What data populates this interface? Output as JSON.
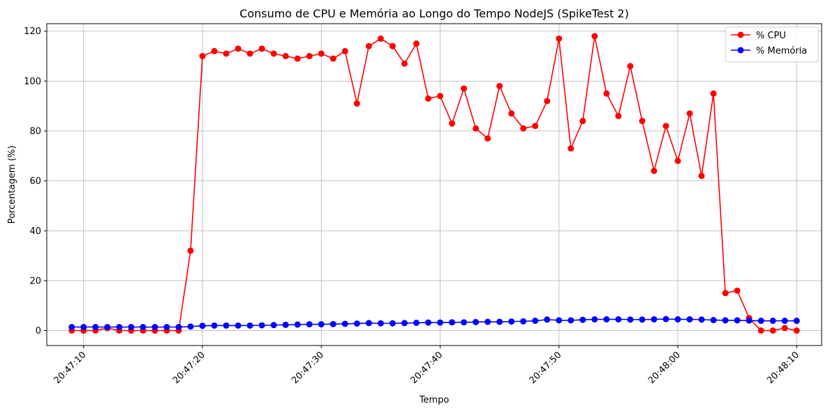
{
  "chart_data": {
    "type": "line",
    "title": "Consumo de CPU e Memória ao Longo do Tempo NodeJS (SpikeTest 2)",
    "xlabel": "Tempo",
    "ylabel": "Porcentagem (%)",
    "x_start": "20:47:09",
    "x": [
      "20:47:09",
      "20:47:10",
      "20:47:11",
      "20:47:12",
      "20:47:13",
      "20:47:14",
      "20:47:15",
      "20:47:16",
      "20:47:17",
      "20:47:18",
      "20:47:19",
      "20:47:20",
      "20:47:21",
      "20:47:22",
      "20:47:23",
      "20:47:24",
      "20:47:25",
      "20:47:26",
      "20:47:27",
      "20:47:28",
      "20:47:29",
      "20:47:30",
      "20:47:31",
      "20:47:32",
      "20:47:33",
      "20:47:34",
      "20:47:35",
      "20:47:36",
      "20:47:37",
      "20:47:38",
      "20:47:39",
      "20:47:40",
      "20:47:41",
      "20:47:42",
      "20:47:43",
      "20:47:44",
      "20:47:45",
      "20:47:46",
      "20:47:47",
      "20:47:48",
      "20:47:49",
      "20:47:50",
      "20:47:51",
      "20:47:52",
      "20:47:53",
      "20:47:54",
      "20:47:55",
      "20:47:56",
      "20:47:57",
      "20:47:58",
      "20:47:59",
      "20:48:00",
      "20:48:01",
      "20:48:02",
      "20:48:03",
      "20:48:04",
      "20:48:05",
      "20:48:06",
      "20:48:07",
      "20:48:08",
      "20:48:09",
      "20:48:10"
    ],
    "x_ticks": [
      "20:47:10",
      "20:47:20",
      "20:47:30",
      "20:47:40",
      "20:47:50",
      "20:48:00",
      "20:48:10"
    ],
    "x_tick_seconds": [
      1,
      11,
      21,
      31,
      41,
      51,
      61
    ],
    "xlim_seconds": [
      -2.1,
      63.1
    ],
    "ylim": [
      -6,
      123
    ],
    "y_ticks": [
      0,
      20,
      40,
      60,
      80,
      100,
      120
    ],
    "grid": true,
    "legend_position": "top-right",
    "series": [
      {
        "name": "% CPU",
        "color": "#ff0000",
        "values": [
          0,
          0,
          0,
          1,
          0,
          0,
          0,
          0,
          0,
          0,
          32,
          110,
          112,
          111,
          113,
          111,
          113,
          111,
          110,
          109,
          110,
          111,
          109,
          112,
          91,
          114,
          117,
          114,
          107,
          115,
          93,
          94,
          83,
          97,
          81,
          77,
          98,
          87,
          81,
          82,
          92,
          117,
          73,
          84,
          118,
          95,
          86,
          106,
          84,
          64,
          82,
          68,
          87,
          62,
          95,
          15,
          16,
          5,
          0,
          0,
          1,
          0
        ]
      },
      {
        "name": "% Memória",
        "color": "#0000ff",
        "values": [
          1.4,
          1.4,
          1.4,
          1.4,
          1.4,
          1.4,
          1.4,
          1.4,
          1.4,
          1.4,
          1.6,
          1.9,
          2.0,
          2.0,
          2.0,
          2.0,
          2.1,
          2.2,
          2.3,
          2.4,
          2.5,
          2.5,
          2.6,
          2.7,
          2.8,
          3.0,
          2.9,
          2.9,
          3.0,
          3.1,
          3.2,
          3.2,
          3.3,
          3.3,
          3.4,
          3.5,
          3.5,
          3.6,
          3.7,
          3.9,
          4.4,
          4.1,
          4.1,
          4.3,
          4.5,
          4.5,
          4.5,
          4.4,
          4.4,
          4.5,
          4.6,
          4.5,
          4.5,
          4.4,
          4.2,
          4.1,
          4.1,
          4.0,
          3.9,
          3.9,
          3.9,
          3.9
        ]
      }
    ]
  }
}
